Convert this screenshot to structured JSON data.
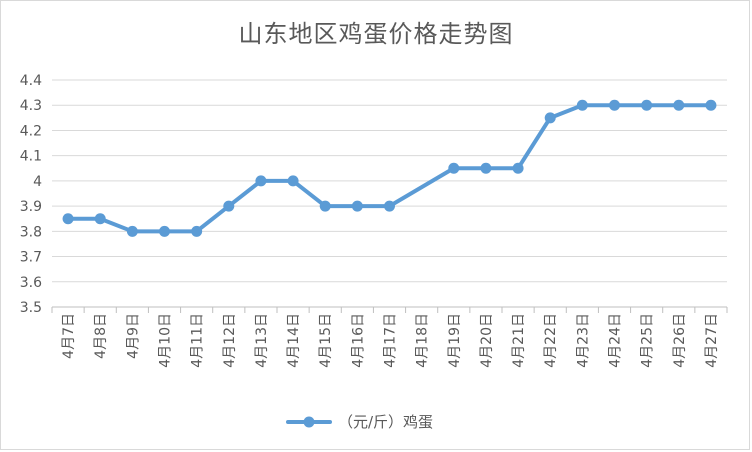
{
  "chart_data": {
    "type": "line",
    "title": "山东地区鸡蛋价格走势图",
    "categories": [
      "4月7日",
      "4月8日",
      "4月9日",
      "4月10日",
      "4月11日",
      "4月12日",
      "4月13日",
      "4月14日",
      "4月15日",
      "4月16日",
      "4月17日",
      "4月18日",
      "4月19日",
      "4月20日",
      "4月21日",
      "4月22日",
      "4月23日",
      "4月24日",
      "4月25日",
      "4月26日",
      "4月27日"
    ],
    "series": [
      {
        "name": "（元/斤）鸡蛋",
        "values": [
          3.85,
          3.85,
          3.8,
          3.8,
          3.8,
          3.9,
          4.0,
          4.0,
          3.9,
          3.9,
          3.9,
          null,
          4.05,
          4.05,
          4.05,
          4.25,
          4.3,
          4.3,
          4.3,
          4.3,
          4.3
        ],
        "color": "#5b9bd5"
      }
    ],
    "ylim": [
      3.5,
      4.4
    ],
    "yticks": [
      "3.5",
      "3.6",
      "3.7",
      "3.8",
      "3.9",
      "4",
      "4.1",
      "4.2",
      "4.3",
      "4.4"
    ],
    "grid": true,
    "legend": "bottom"
  }
}
